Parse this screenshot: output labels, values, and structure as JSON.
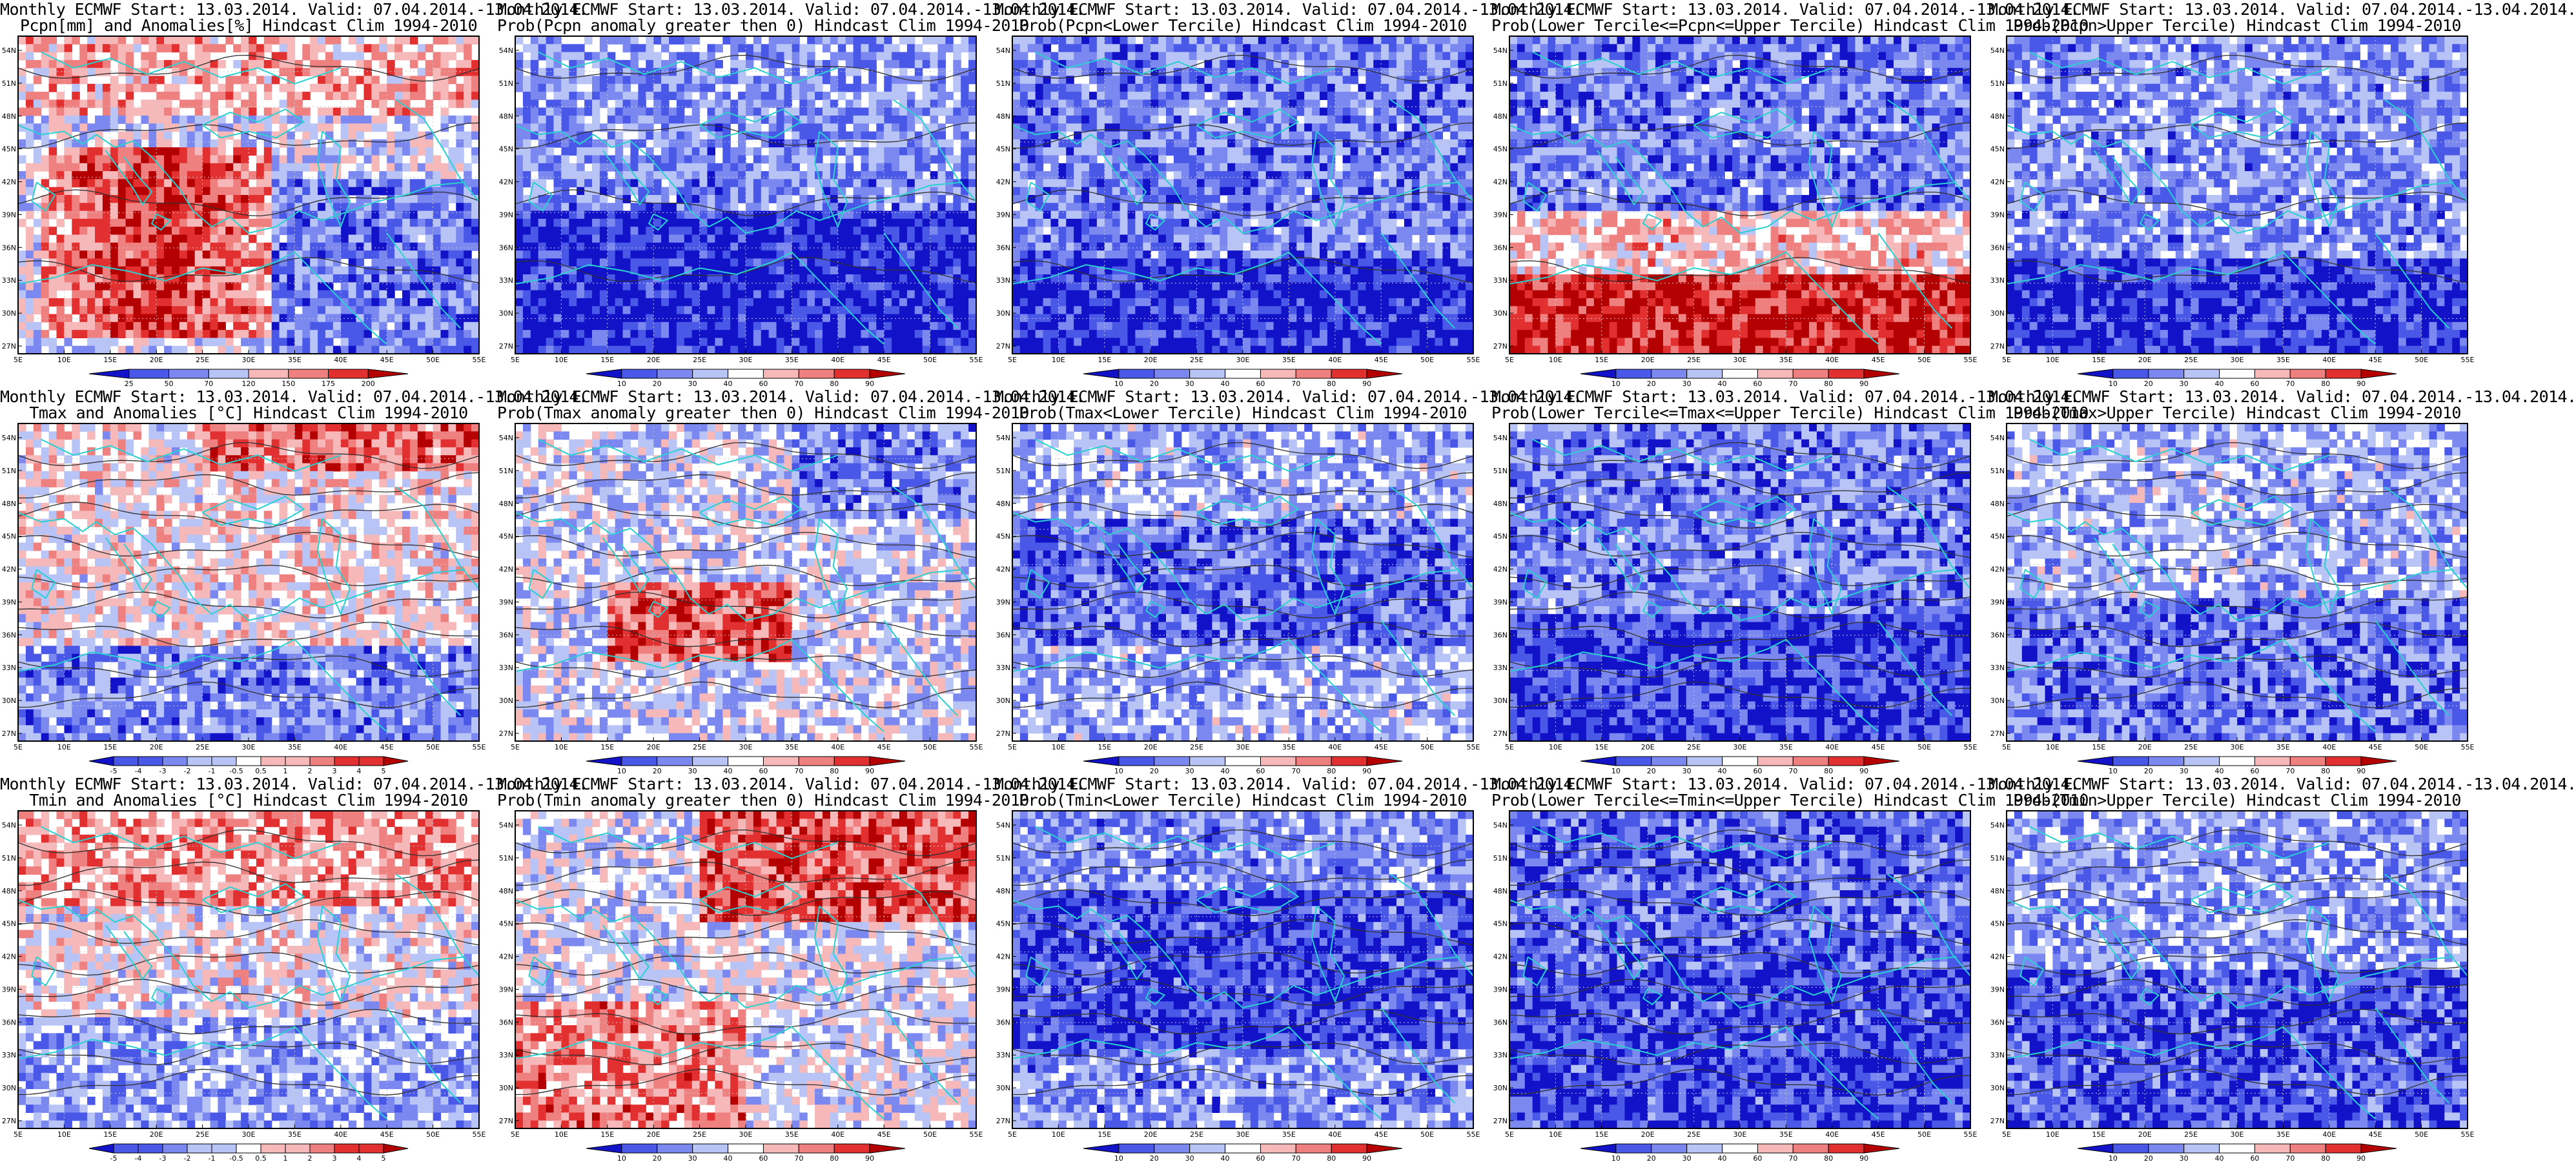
{
  "figure": {
    "rows": [
      {
        "row": "precipitation",
        "panels": [
          {
            "title1": "Monthly ECMWF Start: 13.03.2014. Valid: 07.04.2014.-13.04.2014.",
            "title2": "Pcpn[mm] and Anomalies[%] Hindcast Clim 1994-2010",
            "cbar_labels": [
              "25",
              "50",
              "70",
              "120",
              "150",
              "175",
              "200"
            ]
          },
          {
            "title1": "Monthly ECMWF Start: 13.03.2014. Valid: 07.04.2014.-13.04.2014.",
            "title2": "Prob(Pcpn anomaly greater then 0) Hindcast Clim 1994-2010",
            "cbar_labels": [
              "10",
              "20",
              "30",
              "40",
              "60",
              "70",
              "80",
              "90"
            ]
          },
          {
            "title1": "Monthly ECMWF Start: 13.03.2014. Valid: 07.04.2014.-13.04.2014.",
            "title2": "Prob(Pcpn<Lower Tercile) Hindcast Clim 1994-2010",
            "cbar_labels": [
              "10",
              "20",
              "30",
              "40",
              "60",
              "70",
              "80",
              "90"
            ]
          },
          {
            "title1": "Monthly ECMWF Start: 13.03.2014. Valid: 07.04.2014.-13.04.2014.",
            "title2": "Prob(Lower Tercile<=Pcpn<=Upper Tercile) Hindcast Clim 1994-2010",
            "cbar_labels": [
              "10",
              "20",
              "30",
              "40",
              "60",
              "70",
              "80",
              "90"
            ]
          },
          {
            "title1": "Monthly ECMWF Start: 13.03.2014. Valid: 07.04.2014.-13.04.2014.",
            "title2": "Prob(Pcpn>Upper Tercile) Hindcast Clim 1994-2010",
            "cbar_labels": [
              "10",
              "20",
              "30",
              "40",
              "60",
              "70",
              "80",
              "90"
            ]
          }
        ]
      },
      {
        "row": "tmax",
        "panels": [
          {
            "title1": "Monthly ECMWF Start: 13.03.2014. Valid: 07.04.2014.-13.04.2014.",
            "title2": "Tmax and Anomalies [°C] Hindcast Clim 1994-2010",
            "cbar_labels": [
              "-5",
              "-4",
              "-3",
              "-2",
              "-1",
              "-0.5",
              "0.5",
              "1",
              "2",
              "3",
              "4",
              "5"
            ]
          },
          {
            "title1": "Monthly ECMWF Start: 13.03.2014. Valid: 07.04.2014.-13.04.2014.",
            "title2": "Prob(Tmax anomaly greater then 0) Hindcast Clim 1994-2010",
            "cbar_labels": [
              "10",
              "20",
              "30",
              "40",
              "60",
              "70",
              "80",
              "90"
            ]
          },
          {
            "title1": "Monthly ECMWF Start: 13.03.2014. Valid: 07.04.2014.-13.04.2014.",
            "title2": "Prob(Tmax<Lower Tercile) Hindcast Clim 1994-2010",
            "cbar_labels": [
              "10",
              "20",
              "30",
              "40",
              "60",
              "70",
              "80",
              "90"
            ]
          },
          {
            "title1": "Monthly ECMWF Start: 13.03.2014. Valid: 07.04.2014.-13.04.2014.",
            "title2": "Prob(Lower Tercile<=Tmax<=Upper Tercile) Hindcast Clim 1994-2010",
            "cbar_labels": [
              "10",
              "20",
              "30",
              "40",
              "60",
              "70",
              "80",
              "90"
            ]
          },
          {
            "title1": "Monthly ECMWF Start: 13.03.2014. Valid: 07.04.2014.-13.04.2014.",
            "title2": "Prob(Tmax>Upper Tercile) Hindcast Clim 1994-2010",
            "cbar_labels": [
              "10",
              "20",
              "30",
              "40",
              "60",
              "70",
              "80",
              "90"
            ]
          }
        ]
      },
      {
        "row": "tmin",
        "panels": [
          {
            "title1": "Monthly ECMWF Start: 13.03.2014. Valid: 07.04.2014.-13.04.2014.",
            "title2": "Tmin and Anomalies [°C] Hindcast Clim 1994-2010",
            "cbar_labels": [
              "-5",
              "-4",
              "-3",
              "-2",
              "-1",
              "-0.5",
              "0.5",
              "1",
              "2",
              "3",
              "4",
              "5"
            ]
          },
          {
            "title1": "Monthly ECMWF Start: 13.03.2014. Valid: 07.04.2014.-13.04.2014.",
            "title2": "Prob(Tmin anomaly greater then 0) Hindcast Clim 1994-2010",
            "cbar_labels": [
              "10",
              "20",
              "30",
              "40",
              "60",
              "70",
              "80",
              "90"
            ]
          },
          {
            "title1": "Monthly ECMWF Start: 13.03.2014. Valid: 07.04.2014.-13.04.2014.",
            "title2": "Prob(Tmin<Lower Tercile) Hindcast Clim 1994-2010",
            "cbar_labels": [
              "10",
              "20",
              "30",
              "40",
              "60",
              "70",
              "80",
              "90"
            ]
          },
          {
            "title1": "Monthly ECMWF Start: 13.03.2014. Valid: 07.04.2014.-13.04.2014.",
            "title2": "Prob(Lower Tercile<=Tmin<=Upper Tercile) Hindcast Clim 1994-2010",
            "cbar_labels": [
              "10",
              "20",
              "30",
              "40",
              "60",
              "70",
              "80",
              "90"
            ]
          },
          {
            "title1": "Monthly ECMWF Start: 13.03.2014. Valid: 07.04.2014.-13.04.2014.",
            "title2": "Prob(Tmin>Upper Tercile) Hindcast Clim 1994-2010",
            "cbar_labels": [
              "10",
              "20",
              "30",
              "40",
              "60",
              "70",
              "80",
              "90"
            ]
          }
        ]
      }
    ],
    "lat_labels": [
      "54N",
      "51N",
      "48N",
      "45N",
      "42N",
      "39N",
      "36N",
      "33N",
      "30N",
      "27N"
    ],
    "lon_labels": [
      "5E",
      "10E",
      "15E",
      "20E",
      "25E",
      "30E",
      "35E",
      "40E",
      "45E",
      "50E",
      "55E"
    ],
    "colors": {
      "coast": "#2ad0d0",
      "contour": "#303030",
      "deep_blue": "#1212c8",
      "blue": "#4a58e8",
      "light_blue": "#b8c4f6",
      "light_red": "#f6b8b8",
      "red": "#e23030",
      "deep_red": "#b40000"
    }
  }
}
